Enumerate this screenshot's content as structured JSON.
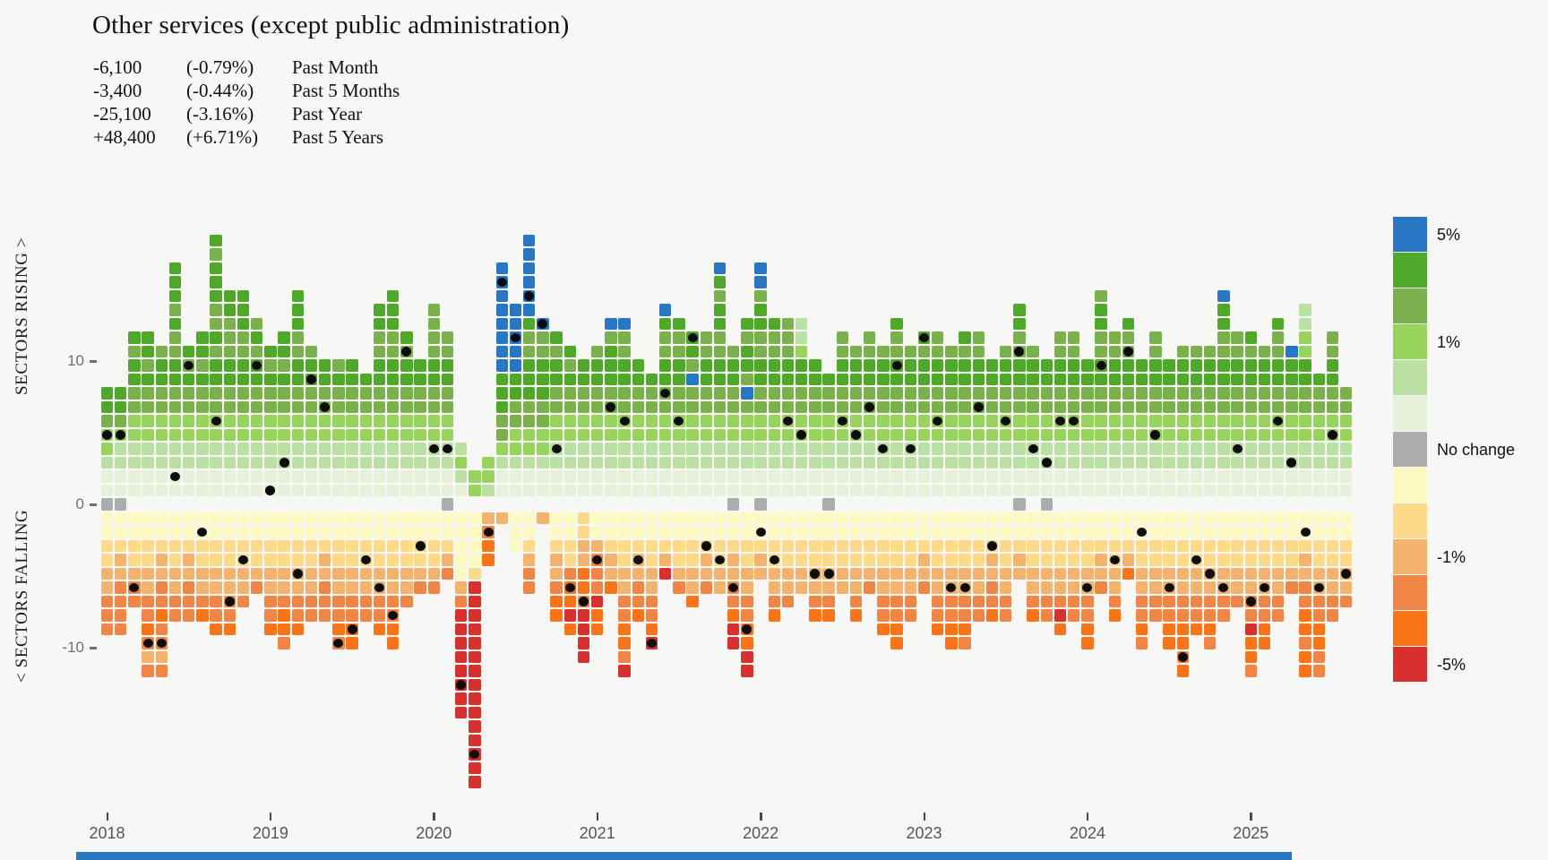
{
  "page": {
    "background": "#f7f7f5"
  },
  "header": {
    "title": "Other services (except public administration)",
    "stats": [
      {
        "amount": "-6,100",
        "pct": "(-0.79%)",
        "label": "Past Month"
      },
      {
        "amount": "-3,400",
        "pct": "(-0.44%)",
        "label": "Past 5 Months"
      },
      {
        "amount": "-25,100",
        "pct": "(-3.16%)",
        "label": "Past Year"
      },
      {
        "amount": "+48,400",
        "pct": "(+6.71%)",
        "label": "Past 5 Years"
      }
    ]
  },
  "axis": {
    "rising_label": "SECTORS RISING >",
    "falling_label": "< SECTORS FALLING",
    "y_ticks": [
      {
        "label": "10",
        "value": 10
      },
      {
        "label": "0",
        "value": 0
      },
      {
        "label": "-10",
        "value": -10
      }
    ],
    "years": [
      "2018",
      "2019",
      "2020",
      "2021",
      "2022",
      "2023",
      "2024",
      "2025"
    ]
  },
  "legend": {
    "items": [
      {
        "color": "#2976c4",
        "label": "5%"
      },
      {
        "color": "#50a82a",
        "label": ""
      },
      {
        "color": "#7ab04d",
        "label": ""
      },
      {
        "color": "#98d35e",
        "label": "1%"
      },
      {
        "color": "#bbe0a4",
        "label": ""
      },
      {
        "color": "#e7f1da",
        "label": ""
      },
      {
        "color": "#acacac",
        "label": "No change"
      },
      {
        "color": "#fdf9c2",
        "label": ""
      },
      {
        "color": "#fdd98a",
        "label": ""
      },
      {
        "color": "#f3b26d",
        "label": "-1%"
      },
      {
        "color": "#f08548",
        "label": ""
      },
      {
        "color": "#f97318",
        "label": ""
      },
      {
        "color": "#d7302f",
        "label": "-5%"
      }
    ]
  },
  "footer_bar": {
    "color": "#2b78c2"
  },
  "chart_data": {
    "type": "heatmap",
    "title": "Monthly count of sectors rising (above zero) and falling (below zero); each square is one sector colored by its monthly % employment change; black dot marks this sector's position",
    "x_range": [
      "2018-01",
      "2025-08"
    ],
    "y_ticks": [
      10,
      0,
      -10
    ],
    "grid": false,
    "legend_position": "right",
    "palette": {
      "a": "#e7f1da",
      "b": "#bbe0a4",
      "c": "#98d35e",
      "d": "#7ab04d",
      "e": "#50a82a",
      "B": "#2976c4",
      "t": "#fdf9c2",
      "u": "#fdd98a",
      "v": "#f3b26d",
      "w": "#f08548",
      "x": "#f97318",
      "r": "#d7302f",
      "gray": "#acacac",
      "dot": "#0d0d0d"
    },
    "columns_format": "[month, rising_cells_bottom_to_top, falling_cells_top_to_bottom, gray_no_change_cell_at_zero, dot_row(+n rising / -n falling)]",
    "columns": [
      [
        "2018-01",
        "aabccdee",
        "ttuuvvwww",
        1,
        5
      ],
      [
        "2018-02",
        "aabbcdee",
        "ttuvvwwww",
        1,
        5
      ],
      [
        "2018-03",
        "aabbccddeede",
        "ttuuvww",
        0,
        -6
      ],
      [
        "2018-04",
        "aabbccddedee",
        "ttuuvvwwxwvw",
        0,
        -10
      ],
      [
        "2018-05",
        "aabbccddeed",
        "ttuvvwwxwwvw",
        0,
        -10
      ],
      [
        "2018-06",
        "aabbccddeeddedeee",
        "ttuuvvww",
        0,
        2
      ],
      [
        "2018-07",
        "aabbccddede",
        "ttuvvwww",
        0,
        10
      ],
      [
        "2018-08",
        "aabbccddedee",
        "ttuuvvwx",
        0,
        -2
      ],
      [
        "2018-09",
        "aabbccddeededdeeede",
        "ttuuvvwwx",
        0,
        6
      ],
      [
        "2018-10",
        "aabbccddeedddee",
        "ttuuvvwwx",
        0,
        -7
      ],
      [
        "2018-11",
        "aabbccddeeddeee",
        "ttuuvvw",
        0,
        -4
      ],
      [
        "2018-12",
        "aabbccddeeded",
        "ttuuvw",
        0,
        10
      ],
      [
        "2019-01",
        "aabbccddede",
        "ttuuvvwwx",
        0,
        1
      ],
      [
        "2019-02",
        "aabbccddedee",
        "ttuuvvwxxw",
        0,
        3
      ],
      [
        "2019-03",
        "aabbccddeeddeee",
        "ttuuvvwwx",
        0,
        -5
      ],
      [
        "2019-04",
        "aabbccddeed",
        "ttuuvvww",
        0,
        9
      ],
      [
        "2019-05",
        "aabbccddee",
        "ttuvvwww",
        0,
        7
      ],
      [
        "2019-06",
        "aabbccdded",
        "ttuuvvwwxw",
        0,
        -10
      ],
      [
        "2019-07",
        "aabbccddee",
        "ttuuvvwwxx",
        0,
        -9
      ],
      [
        "2019-08",
        "aabbccdde",
        "ttuuvvww",
        0,
        -4
      ],
      [
        "2019-09",
        "aabbccddeeddee",
        "ttuuvvwwx",
        0,
        -6
      ],
      [
        "2019-10",
        "aabbccddeeddeee",
        "ttuuvvwwxx",
        0,
        -8
      ],
      [
        "2019-11",
        "aabbccddeede",
        "ttuuvvw",
        0,
        11
      ],
      [
        "2019-12",
        "aabbccddee",
        "ttuuvw",
        0,
        -3
      ],
      [
        "2020-01",
        "aabbccddeedddd",
        "ttuuvw",
        0,
        4
      ],
      [
        "2020-02",
        "aabbccddeedd",
        "ttuvw",
        1,
        4
      ],
      [
        "2020-03",
        "abcb",
        "tttttvwrrrrrrrr",
        0,
        -13
      ],
      [
        "2020-04",
        "cc",
        "tttturrrrrrrrrrrrrrr",
        0,
        -18
      ],
      [
        "2020-05",
        "bcc",
        "vwxx",
        0,
        -2
      ],
      [
        "2020-06",
        "aabcddeeeBBBBBBBB",
        "v",
        0,
        16
      ],
      [
        "2020-07",
        "aabccddeeBBBBB",
        "ttt",
        0,
        12
      ],
      [
        "2020-08",
        "aabccddeeeddeBBBBBB",
        "ttuvww",
        0,
        15
      ],
      [
        "2020-09",
        "aabccddeeeddB",
        "v",
        0,
        13
      ],
      [
        "2020-10",
        "aabbccddeede",
        "ttuvvwxx",
        0,
        4
      ],
      [
        "2020-11",
        "aabbccddede",
        "ttuuwxxrx",
        0,
        -6
      ],
      [
        "2020-12",
        "aabbccddee",
        "uuvvxxwrrrr",
        0,
        -7
      ],
      [
        "2021-01",
        "aabbccddeed",
        "ttvwwwrxx",
        0,
        -4
      ],
      [
        "2021-02",
        "aabbccddeeedB",
        "ttuvvx",
        0,
        7
      ],
      [
        "2021-03",
        "aabbccddeeddB",
        "ttuuvvwwxxwr",
        0,
        6
      ],
      [
        "2021-04",
        "aabbccddee",
        "ttuvvwwx",
        0,
        -4
      ],
      [
        "2021-05",
        "aabbccdde",
        "ttuuvvwwxr",
        0,
        -10
      ],
      [
        "2021-06",
        "aabbccddeeddeB",
        "ttuvr",
        0,
        8
      ],
      [
        "2021-07",
        "aabbccddeedde",
        "ttuuvw",
        0,
        6
      ],
      [
        "2021-08",
        "aabbccddBdee",
        "ttuuvvx",
        0,
        12
      ],
      [
        "2021-09",
        "aabbccddeedd",
        "ttuvvw",
        0,
        -3
      ],
      [
        "2021-10",
        "aabbccddeeddeedeB",
        "ttuuvv",
        0,
        -4
      ],
      [
        "2021-11",
        "aabbccddeed",
        "ttuvvwwxrr",
        1,
        -6
      ],
      [
        "2021-12",
        "aabbccdBdeede",
        "ttuuvvwwxxrr",
        0,
        -9
      ],
      [
        "2022-01",
        "aabbccddeeddeedBB",
        "ttuvv",
        1,
        -2
      ],
      [
        "2022-02",
        "aabbccddeedde",
        "ttuuvvwx",
        0,
        -4
      ],
      [
        "2022-03",
        "aabbccddeeddd",
        "ttuuvvw",
        0,
        6
      ],
      [
        "2022-04",
        "aabbccddeecbb",
        "ttuuvv",
        0,
        5
      ],
      [
        "2022-05",
        "aabbccddee",
        "ttuuvvwx",
        0,
        -5
      ],
      [
        "2022-06",
        "aabbccdde",
        "ttuuvvwx",
        1,
        -5
      ],
      [
        "2022-07",
        "aabbccddeedd",
        "ttuuvv",
        0,
        6
      ],
      [
        "2022-08",
        "aabbccddeed",
        "ttuuvvwx",
        0,
        5
      ],
      [
        "2022-09",
        "aabbccddeedd",
        "ttuuvw",
        0,
        7
      ],
      [
        "2022-10",
        "aabbccddeed",
        "ttuuvvwwx",
        0,
        4
      ],
      [
        "2022-11",
        "aabbccddeedde",
        "ttuuvvwwxx",
        0,
        10
      ],
      [
        "2022-12",
        "aabbccddeed",
        "ttuuvvww",
        0,
        4
      ],
      [
        "2023-01",
        "aabbccddeede",
        "ttuvvw",
        0,
        12
      ],
      [
        "2023-02",
        "aabbccddeedd",
        "ttuuvvwwx",
        0,
        6
      ],
      [
        "2023-03",
        "aabbccddeed",
        "ttuuvvwwxx",
        0,
        -6
      ],
      [
        "2023-04",
        "aabbccddeede",
        "ttuuvvwwxw",
        0,
        -6
      ],
      [
        "2023-05",
        "aabbccddeedd",
        "ttuuvvww",
        0,
        7
      ],
      [
        "2023-06",
        "aabbccddee",
        "ttuvvwwx",
        0,
        -3
      ],
      [
        "2023-07",
        "aabbccddeed",
        "ttuuvvww",
        0,
        6
      ],
      [
        "2023-08",
        "aabbccddeeddee",
        "ttuvv",
        1,
        11
      ],
      [
        "2023-09",
        "aabbccddeed",
        "ttuuvvwx",
        0,
        4
      ],
      [
        "2023-10",
        "aabbccddee",
        "ttuuvvww",
        1,
        3
      ],
      [
        "2023-11",
        "aabbccddeedd",
        "ttuuvvwrx",
        0,
        6
      ],
      [
        "2023-12",
        "aabbccddeedd",
        "ttuuvvww",
        0,
        6
      ],
      [
        "2024-01",
        "aabbccddee",
        "ttuuvvwwxx",
        0,
        -6
      ],
      [
        "2024-02",
        "aabbccddeeddeed",
        "ttuvvw",
        0,
        10
      ],
      [
        "2024-03",
        "aabbccddeedd",
        "ttuuvvwx",
        0,
        -4
      ],
      [
        "2024-04",
        "aabbccddeedde",
        "ttuvx",
        0,
        11
      ],
      [
        "2024-05",
        "aabbccddee",
        "ttuuvvwwxw",
        0,
        -2
      ],
      [
        "2024-06",
        "aabbccddeedd",
        "ttuuvvww",
        0,
        5
      ],
      [
        "2024-07",
        "aabbccddee",
        "ttuuvvwwxx",
        0,
        -6
      ],
      [
        "2024-08",
        "aabbccddeed",
        "ttuuvvwwxxwx",
        0,
        -11
      ],
      [
        "2024-09",
        "aabbccddeed",
        "ttuuvvwwx",
        0,
        -4
      ],
      [
        "2024-10",
        "aabbccddeed",
        "ttuuvvwwxw",
        0,
        -5
      ],
      [
        "2024-11",
        "aabbccddeeddeeB",
        "ttuuvvww",
        0,
        -6
      ],
      [
        "2024-12",
        "aabbccddeedd",
        "ttuuvvw",
        0,
        4
      ],
      [
        "2025-01",
        "aabbccddeede",
        "ttuuvvwwrxxw",
        0,
        -7
      ],
      [
        "2025-02",
        "aabbccddeed",
        "ttuuvvwwxx",
        0,
        -6
      ],
      [
        "2025-03",
        "aabbccddeedde",
        "ttuuvvww",
        0,
        6
      ],
      [
        "2025-04",
        "aabbccddeeB",
        "ttuuvw",
        0,
        3
      ],
      [
        "2025-05",
        "aabbccddeeccbb",
        "ttuvvwwxxwxx",
        0,
        -2
      ],
      [
        "2025-06",
        "aabbccdde",
        "ttuuvvwwxxww",
        0,
        -6
      ],
      [
        "2025-07",
        "aabbccddeedd",
        "ttuuvvww",
        0,
        5
      ],
      [
        "2025-08",
        "aabbccdd",
        "ttuuvvw",
        0,
        -5
      ]
    ]
  }
}
